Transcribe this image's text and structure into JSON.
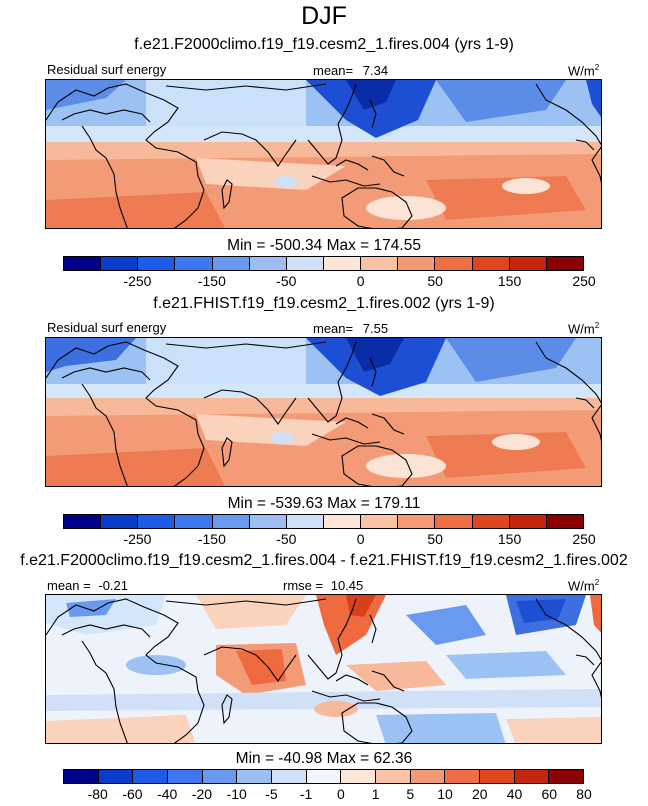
{
  "title": "DJF",
  "panels": [
    {
      "title": "f.e21.F2000climo.f19_f19.cesm2_1.fires.004 (yrs 1-9)",
      "left_label": "Residual surf energy",
      "mean_label": "mean=",
      "mean_value": "7.34",
      "units": "W/m",
      "units_exp": "2",
      "minmax": "Min = -500.34 Max = 174.55"
    },
    {
      "title": "f.e21.FHIST.f19_f19.cesm2_1.fires.002 (yrs 1-9)",
      "left_label": "Residual surf energy",
      "mean_label": "mean=",
      "mean_value": "7.55",
      "units": "W/m",
      "units_exp": "2",
      "minmax": "Min = -539.63 Max = 179.11"
    },
    {
      "title": "f.e21.F2000climo.f19_f19.cesm2_1.fires.004 - f.e21.FHIST.f19_f19.cesm2_1.fires.002",
      "mean_label": "mean =",
      "mean_value": "-0.21",
      "rmse_label": "rmse =",
      "rmse_value": "10.45",
      "units": "W/m",
      "units_exp": "2",
      "minmax": "Min = -40.98 Max =  62.36"
    }
  ],
  "colorbar_main": {
    "colors": [
      "#00008b",
      "#0a3ccc",
      "#1e5be8",
      "#3d78f0",
      "#6a9af0",
      "#9cbef2",
      "#cfe0f7",
      "#fde6d6",
      "#f9c2a4",
      "#f49a74",
      "#ee6f46",
      "#e0461e",
      "#c4260c",
      "#8b0000"
    ],
    "labels": [
      "-250",
      "-150",
      "-50",
      "0",
      "50",
      "150",
      "250"
    ]
  },
  "colorbar_diff": {
    "colors": [
      "#00008b",
      "#0a3ccc",
      "#1e5be8",
      "#3d78f0",
      "#6a9af0",
      "#9cbef2",
      "#cfe0f7",
      "#f2f5fb",
      "#fde6d6",
      "#f9c2a4",
      "#f49a74",
      "#ee6f46",
      "#e0461e",
      "#c4260c",
      "#8b0000"
    ],
    "labels": [
      "-80",
      "-60",
      "-40",
      "-20",
      "-10",
      "-5",
      "-1",
      "0",
      "1",
      "5",
      "10",
      "20",
      "40",
      "60",
      "80"
    ]
  },
  "chart_data": [
    {
      "type": "heatmap",
      "title": "f.e21.F2000climo.f19_f19.cesm2_1.fires.004 (yrs 1-9)",
      "variable": "Residual surf energy",
      "units": "W/m2",
      "mean": 7.34,
      "min": -500.34,
      "max": 174.55,
      "levels": [
        -300,
        -250,
        -200,
        -150,
        -100,
        -50,
        0,
        50,
        100,
        150,
        200,
        250,
        300
      ]
    },
    {
      "type": "heatmap",
      "title": "f.e21.FHIST.f19_f19.cesm2_1.fires.002 (yrs 1-9)",
      "variable": "Residual surf energy",
      "units": "W/m2",
      "mean": 7.55,
      "min": -539.63,
      "max": 179.11,
      "levels": [
        -300,
        -250,
        -200,
        -150,
        -100,
        -50,
        0,
        50,
        100,
        150,
        200,
        250,
        300
      ]
    },
    {
      "type": "heatmap",
      "title": "f.e21.F2000climo.f19_f19.cesm2_1.fires.004 - f.e21.FHIST.f19_f19.cesm2_1.fires.002",
      "units": "W/m2",
      "mean": -0.21,
      "rmse": 10.45,
      "min": -40.98,
      "max": 62.36,
      "levels": [
        -80,
        -60,
        -40,
        -20,
        -10,
        -5,
        -1,
        0,
        1,
        5,
        10,
        20,
        40,
        60,
        80
      ]
    }
  ]
}
